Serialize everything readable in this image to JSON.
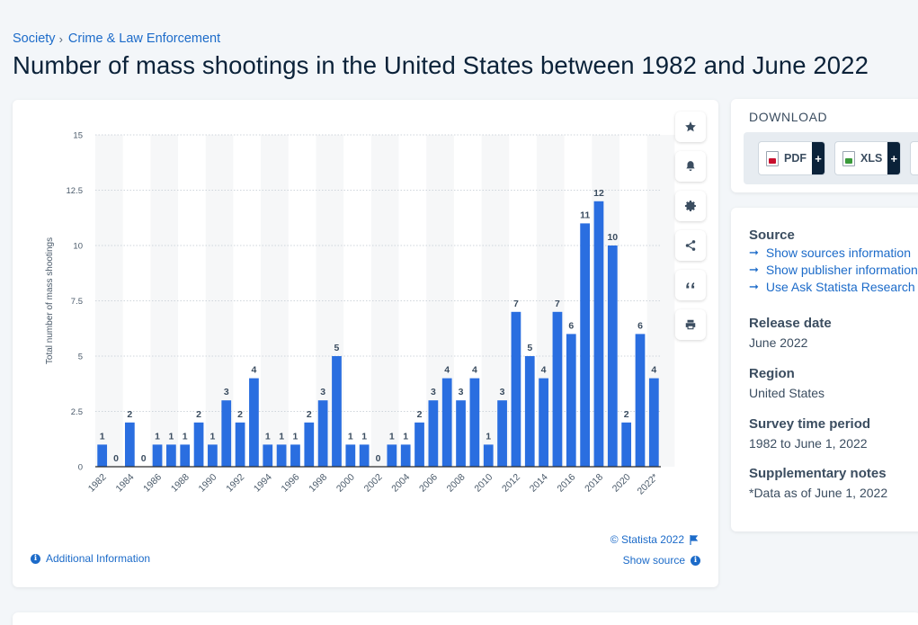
{
  "breadcrumb": {
    "level1": "Society",
    "level2": "Crime & Law Enforcement",
    "separator": "›"
  },
  "page_title": "Number of mass shootings in the United States between 1982 and June 2022",
  "chart_actions": [
    "star-icon",
    "bell-icon",
    "gear-icon",
    "share-icon",
    "quote-icon",
    "print-icon"
  ],
  "credit": "© Statista 2022",
  "show_source": "Show source",
  "additional_info": "Additional Information",
  "download": {
    "title": "DOWNLOAD",
    "pdf_label": "PDF",
    "xls_label": "XLS",
    "plus": "+"
  },
  "source": {
    "heading": "Source",
    "links": [
      "Show sources information",
      "Show publisher information",
      "Use Ask Statista Research Service"
    ]
  },
  "release": {
    "heading": "Release date",
    "value": "June 2022"
  },
  "region": {
    "heading": "Region",
    "value": "United States"
  },
  "survey": {
    "heading": "Survey time period",
    "value": "1982 to June 1, 2022"
  },
  "notes": {
    "heading": "Supplementary notes",
    "value": "*Data as of June 1, 2022"
  },
  "colors": {
    "bar": "#2a6ee0",
    "link": "#1c6bc9",
    "title": "#0b2239"
  },
  "chart_data": {
    "type": "bar",
    "categories": [
      "1982",
      "1983",
      "1984",
      "1985",
      "1986",
      "1987",
      "1988",
      "1989",
      "1990",
      "1991",
      "1992",
      "1993",
      "1994",
      "1995",
      "1996",
      "1997",
      "1998",
      "1999",
      "2000",
      "2001",
      "2002",
      "2003",
      "2004",
      "2005",
      "2006",
      "2007",
      "2008",
      "2009",
      "2010",
      "2011",
      "2012",
      "2013",
      "2014",
      "2015",
      "2016",
      "2017",
      "2018",
      "2019",
      "2020",
      "2021",
      "2022*"
    ],
    "values": [
      1,
      0,
      2,
      0,
      1,
      1,
      1,
      2,
      1,
      3,
      2,
      4,
      1,
      1,
      1,
      2,
      3,
      5,
      1,
      1,
      0,
      1,
      1,
      2,
      3,
      4,
      3,
      4,
      1,
      3,
      7,
      5,
      4,
      7,
      6,
      11,
      12,
      10,
      2,
      6,
      4
    ],
    "tick_labels": [
      "1982",
      "1984",
      "1986",
      "1988",
      "1990",
      "1992",
      "1994",
      "1996",
      "1998",
      "2000",
      "2002",
      "2004",
      "2006",
      "2008",
      "2010",
      "2012",
      "2014",
      "2016",
      "2018",
      "2020",
      "2022*"
    ],
    "yticks": [
      "0",
      "2.5",
      "5",
      "7.5",
      "10",
      "12.5",
      "15"
    ],
    "ylim": [
      0,
      15
    ],
    "ylabel": "Total number of mass shootings",
    "xlabel": "",
    "title": "",
    "grid": true
  }
}
